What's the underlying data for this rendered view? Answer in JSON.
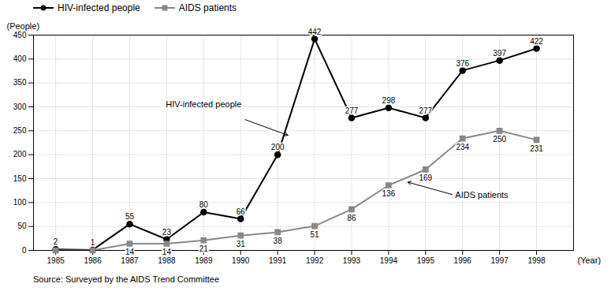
{
  "chart_data": {
    "type": "line",
    "x": [
      1985,
      1986,
      1987,
      1988,
      1989,
      1990,
      1991,
      1992,
      1993,
      1994,
      1995,
      1996,
      1997,
      1998
    ],
    "series": [
      {
        "name": "HIV-infected people",
        "color": "#000000",
        "marker": "circle",
        "values": [
          2,
          1,
          55,
          23,
          80,
          66,
          200,
          442,
          277,
          298,
          277,
          376,
          397,
          422
        ]
      },
      {
        "name": "AIDS patients",
        "color": "#888888",
        "marker": "square",
        "values": [
          0,
          0,
          14,
          14,
          21,
          31,
          38,
          51,
          86,
          136,
          169,
          234,
          250,
          231
        ],
        "value_labels": [
          null,
          null,
          "14",
          "14",
          "21",
          "31",
          "38",
          "51",
          "86",
          "136",
          "169",
          "234",
          "250",
          "231"
        ]
      }
    ],
    "xlabel": "(Year)",
    "ylabel": "(People)",
    "xlim": [
      1984.4,
      1999.0
    ],
    "xticks": [
      1985,
      1986,
      1987,
      1988,
      1989,
      1990,
      1991,
      1992,
      1993,
      1994,
      1995,
      1996,
      1997,
      1998
    ],
    "ylim": [
      0,
      450
    ],
    "yticks": [
      0,
      50,
      100,
      150,
      200,
      250,
      300,
      350,
      400,
      450
    ],
    "grid": true,
    "legend": "upper left",
    "data_labels": true,
    "annotations": [
      {
        "text": "HIV-infected people",
        "x": 1991.3,
        "y": 240,
        "text_x": 1989.0,
        "text_y": 305
      },
      {
        "text": "AIDS patients",
        "x": 1994.5,
        "y": 143,
        "text_x": 1995.8,
        "text_y": 115
      }
    ],
    "caption": "Source:  Surveyed by the AIDS Trend Committee"
  }
}
